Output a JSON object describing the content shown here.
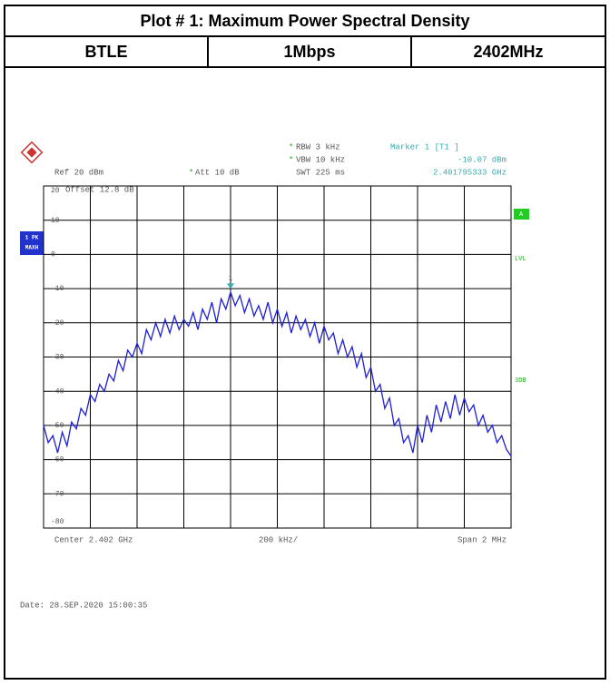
{
  "header": {
    "title": "Plot # 1: Maximum Power Spectral Density",
    "cells": [
      "BTLE",
      "1Mbps",
      "2402MHz"
    ]
  },
  "chart_data": {
    "type": "line",
    "annotations": {
      "rbw": "RBW 3 kHz",
      "vbw": "VBW 10 kHz",
      "swt": "SWT 225 ms",
      "ref": "Ref 20 dBm",
      "att": "Att 10 dB",
      "offset": "Offset 12.8 dB",
      "trace": "1 PK",
      "mode": "MAXH",
      "a": "A",
      "lvl": "LVL",
      "db3": "3DB",
      "center": "Center 2.402 GHz",
      "div": "200 kHz/",
      "span": "Span 2 MHz",
      "date": "Date: 28.SEP.2020 15:00:35",
      "star": "*"
    },
    "marker": {
      "label": "Marker 1 [T1 ]",
      "value": -10.07,
      "value_label": "-10.07 dBm",
      "frequency": "2.401795333 GHz",
      "number": "1"
    },
    "series": [
      {
        "color": "#1f1fd6",
        "values": [
          -50,
          -55,
          -53,
          -58,
          -52,
          -56,
          -49,
          -51,
          -45,
          -47,
          -41,
          -43,
          -38,
          -40,
          -35,
          -37,
          -31,
          -34,
          -28,
          -30,
          -26,
          -29,
          -22,
          -25,
          -20,
          -24,
          -19,
          -23,
          -18,
          -22,
          -19,
          -21,
          -17,
          -22,
          -16,
          -19,
          -14,
          -20,
          -13,
          -16,
          -11,
          -15,
          -12,
          -17,
          -13,
          -18,
          -15,
          -19,
          -14,
          -20,
          -16,
          -21,
          -17,
          -23,
          -18,
          -22,
          -19,
          -24,
          -20,
          -26,
          -21,
          -25,
          -23,
          -29,
          -25,
          -30,
          -27,
          -33,
          -29,
          -36,
          -33,
          -40,
          -38,
          -45,
          -42,
          -50,
          -48,
          -55,
          -53,
          -58,
          -50,
          -55,
          -47,
          -52,
          -44,
          -49,
          -43,
          -48,
          -41,
          -47,
          -42,
          -46,
          -44,
          -50,
          -47,
          -52,
          -50,
          -55,
          -53,
          -57,
          -59
        ]
      }
    ],
    "ylim": [
      -80,
      20
    ],
    "yticks": [
      20,
      10,
      0,
      -10,
      -20,
      -30,
      -40,
      -50,
      -60,
      -70,
      -80
    ],
    "grid": true
  }
}
